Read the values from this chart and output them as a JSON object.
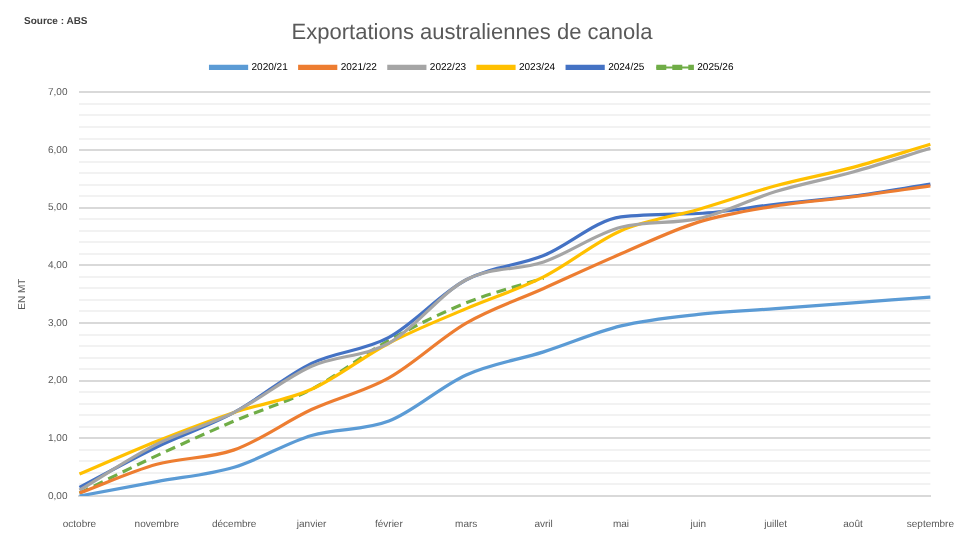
{
  "chart_data": {
    "type": "line",
    "title": "Exportations australiennes de canola",
    "ylabel": "EN MT",
    "annotations": [
      "Source : ABS"
    ],
    "categories": [
      "octobre",
      "novembre",
      "décembre",
      "janvier",
      "février",
      "mars",
      "avril",
      "mai",
      "juin",
      "juillet",
      "août",
      "septembre"
    ],
    "series": [
      {
        "name": "2020/21",
        "color": "#5b9bd5",
        "values": [
          0.0,
          0.25,
          0.5,
          1.05,
          1.3,
          2.1,
          2.5,
          2.95,
          3.15,
          3.25,
          3.35,
          3.45
        ]
      },
      {
        "name": "2021/22",
        "color": "#ed7d31",
        "values": [
          0.05,
          0.55,
          0.8,
          1.5,
          2.05,
          3.0,
          3.6,
          4.2,
          4.75,
          5.03,
          5.19,
          5.38
        ]
      },
      {
        "name": "2022/23",
        "color": "#a5a5a5",
        "values": [
          0.1,
          0.9,
          1.45,
          2.25,
          2.65,
          3.75,
          4.06,
          4.66,
          4.81,
          5.28,
          5.62,
          6.03
        ]
      },
      {
        "name": "2023/24",
        "color": "#ffc000",
        "values": [
          0.38,
          0.95,
          1.45,
          1.85,
          2.65,
          3.25,
          3.8,
          4.6,
          4.97,
          5.38,
          5.7,
          6.1
        ]
      },
      {
        "name": "2024/25",
        "color": "#4472c4",
        "values": [
          0.15,
          0.85,
          1.45,
          2.3,
          2.75,
          3.75,
          4.17,
          4.84,
          4.9,
          5.06,
          5.2,
          5.41
        ]
      },
      {
        "name": "2025/26",
        "color": "#70ad47",
        "line_style": "dashed",
        "values": [
          0.05,
          0.7,
          1.3,
          1.85,
          2.7,
          3.35,
          3.78,
          null,
          null,
          null,
          null,
          null
        ]
      }
    ],
    "ylim": [
      0,
      7
    ],
    "yticks": [
      {
        "value": 0,
        "label": "0,00"
      },
      {
        "value": 0.2,
        "label": null
      },
      {
        "value": 0.4,
        "label": null
      },
      {
        "value": 0.6,
        "label": null
      },
      {
        "value": 0.8,
        "label": null
      },
      {
        "value": 1,
        "label": "1,00"
      },
      {
        "value": 1.2,
        "label": null
      },
      {
        "value": 1.4,
        "label": null
      },
      {
        "value": 1.6,
        "label": null
      },
      {
        "value": 1.8,
        "label": null
      },
      {
        "value": 2,
        "label": "2,00"
      },
      {
        "value": 2.2,
        "label": null
      },
      {
        "value": 2.4,
        "label": null
      },
      {
        "value": 2.6,
        "label": null
      },
      {
        "value": 2.8,
        "label": null
      },
      {
        "value": 3,
        "label": "3,00"
      },
      {
        "value": 3.2,
        "label": null
      },
      {
        "value": 3.4,
        "label": null
      },
      {
        "value": 3.6,
        "label": null
      },
      {
        "value": 3.8,
        "label": null
      },
      {
        "value": 4,
        "label": "4,00"
      },
      {
        "value": 4.2,
        "label": null
      },
      {
        "value": 4.4,
        "label": null
      },
      {
        "value": 4.6,
        "label": null
      },
      {
        "value": 4.8,
        "label": null
      },
      {
        "value": 5,
        "label": "5,00"
      },
      {
        "value": 5.2,
        "label": null
      },
      {
        "value": 5.4,
        "label": null
      },
      {
        "value": 5.6,
        "label": null
      },
      {
        "value": 5.8,
        "label": null
      },
      {
        "value": 6,
        "label": "6,00"
      },
      {
        "value": 6.2,
        "label": null
      },
      {
        "value": 6.4,
        "label": null
      },
      {
        "value": 6.6,
        "label": null
      },
      {
        "value": 6.8,
        "label": null
      },
      {
        "value": 7,
        "label": "7,00"
      }
    ],
    "grid": "y",
    "legend": "top",
    "marker": "none"
  }
}
